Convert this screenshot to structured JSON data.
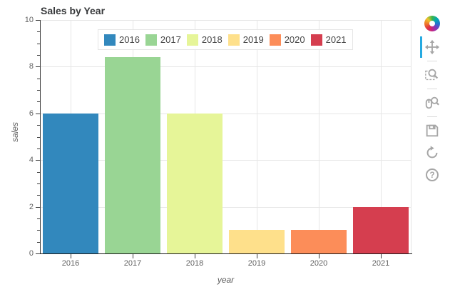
{
  "title": "Sales by Year",
  "chart_data": {
    "type": "bar",
    "title": "Sales by Year",
    "categories": [
      "2016",
      "2017",
      "2018",
      "2019",
      "2020",
      "2021"
    ],
    "values": [
      6,
      8.4,
      6,
      1,
      1,
      2
    ],
    "colors": [
      "#3288bd",
      "#99d594",
      "#e6f598",
      "#fee08b",
      "#fc8d59",
      "#d53e4f"
    ],
    "xlabel": "year",
    "ylabel": "sales",
    "ylim": [
      0,
      10
    ],
    "yticks": [
      0,
      2,
      4,
      6,
      8,
      10
    ],
    "y_minor_step": 0.5,
    "grid": true,
    "legend_entries": [
      "2016",
      "2017",
      "2018",
      "2019",
      "2020",
      "2021"
    ],
    "legend_position": "top-center-inside"
  },
  "toolbar": {
    "accent_color": "#26aae1",
    "icon_color": "#a6a6a6",
    "help_glyph": "?",
    "tools": [
      {
        "label": "Pan",
        "active": true
      },
      {
        "label": "Box Zoom",
        "active": false
      },
      {
        "label": "Wheel Zoom",
        "active": false
      },
      {
        "label": "Save",
        "active": false
      },
      {
        "label": "Reset",
        "active": false
      },
      {
        "label": "Help",
        "active": false
      }
    ]
  }
}
